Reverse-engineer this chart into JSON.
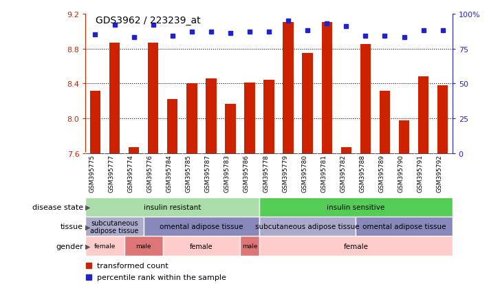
{
  "title": "GDS3962 / 223239_at",
  "samples": [
    "GSM395775",
    "GSM395777",
    "GSM395774",
    "GSM395776",
    "GSM395784",
    "GSM395785",
    "GSM395787",
    "GSM395783",
    "GSM395786",
    "GSM395778",
    "GSM395779",
    "GSM395780",
    "GSM395781",
    "GSM395782",
    "GSM395788",
    "GSM395789",
    "GSM395790",
    "GSM395791",
    "GSM395792"
  ],
  "bar_values": [
    8.32,
    8.87,
    7.67,
    8.87,
    8.22,
    8.4,
    8.46,
    8.17,
    8.41,
    8.44,
    9.1,
    8.75,
    9.1,
    7.67,
    8.85,
    8.32,
    7.98,
    8.48,
    8.38
  ],
  "dot_values": [
    85,
    92,
    83,
    92,
    84,
    87,
    87,
    86,
    87,
    87,
    95,
    88,
    93,
    91,
    84,
    84,
    83,
    88,
    88
  ],
  "ylim_left": [
    7.6,
    9.2
  ],
  "ylim_right": [
    0,
    100
  ],
  "yticks_left": [
    7.6,
    8.0,
    8.4,
    8.8,
    9.2
  ],
  "yticks_right": [
    0,
    25,
    50,
    75,
    100
  ],
  "bar_color": "#cc2200",
  "dot_color": "#2222cc",
  "hline_values": [
    8.0,
    8.4,
    8.8
  ],
  "disease_state_groups": [
    {
      "label": "insulin resistant",
      "start": 0,
      "end": 9,
      "color": "#aaddaa"
    },
    {
      "label": "insulin sensitive",
      "start": 9,
      "end": 19,
      "color": "#55cc55"
    }
  ],
  "tissue_groups": [
    {
      "label": "subcutaneous\nadipose tissue",
      "start": 0,
      "end": 3,
      "color": "#aaaacc"
    },
    {
      "label": "omental adipose tissue",
      "start": 3,
      "end": 9,
      "color": "#8888bb"
    },
    {
      "label": "subcutaneous adipose tissue",
      "start": 9,
      "end": 14,
      "color": "#aaaacc"
    },
    {
      "label": "omental adipose tissue",
      "start": 14,
      "end": 19,
      "color": "#8888bb"
    }
  ],
  "gender_groups": [
    {
      "label": "female",
      "start": 0,
      "end": 2,
      "color": "#ffcccc"
    },
    {
      "label": "male",
      "start": 2,
      "end": 4,
      "color": "#dd7777"
    },
    {
      "label": "female",
      "start": 4,
      "end": 8,
      "color": "#ffcccc"
    },
    {
      "label": "male",
      "start": 8,
      "end": 9,
      "color": "#dd7777"
    },
    {
      "label": "female",
      "start": 9,
      "end": 19,
      "color": "#ffcccc"
    }
  ],
  "legend_items": [
    {
      "label": "transformed count",
      "color": "#cc2200"
    },
    {
      "label": "percentile rank within the sample",
      "color": "#2222cc"
    }
  ]
}
